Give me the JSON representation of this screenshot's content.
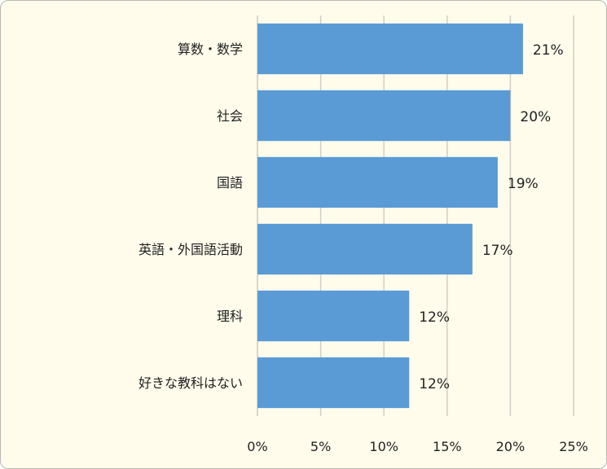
{
  "chart_data": {
    "type": "bar",
    "orientation": "horizontal",
    "categories": [
      "算数・数学",
      "社会",
      "国語",
      "英語・外国語活動",
      "理科",
      "好きな教科はない"
    ],
    "values": [
      21,
      20,
      19,
      17,
      12,
      12
    ],
    "data_labels": [
      "21%",
      "20%",
      "19%",
      "17%",
      "12%",
      "12%"
    ],
    "x_ticks": [
      "0%",
      "5%",
      "10%",
      "15%",
      "20%",
      "25%"
    ],
    "xlim": [
      0,
      25
    ],
    "grid": "vertical",
    "title": "",
    "xlabel": "",
    "ylabel": "",
    "colors": {
      "bar": "#5b9bd5",
      "grid": "#d0d0c8",
      "background": "#fffcec"
    }
  }
}
